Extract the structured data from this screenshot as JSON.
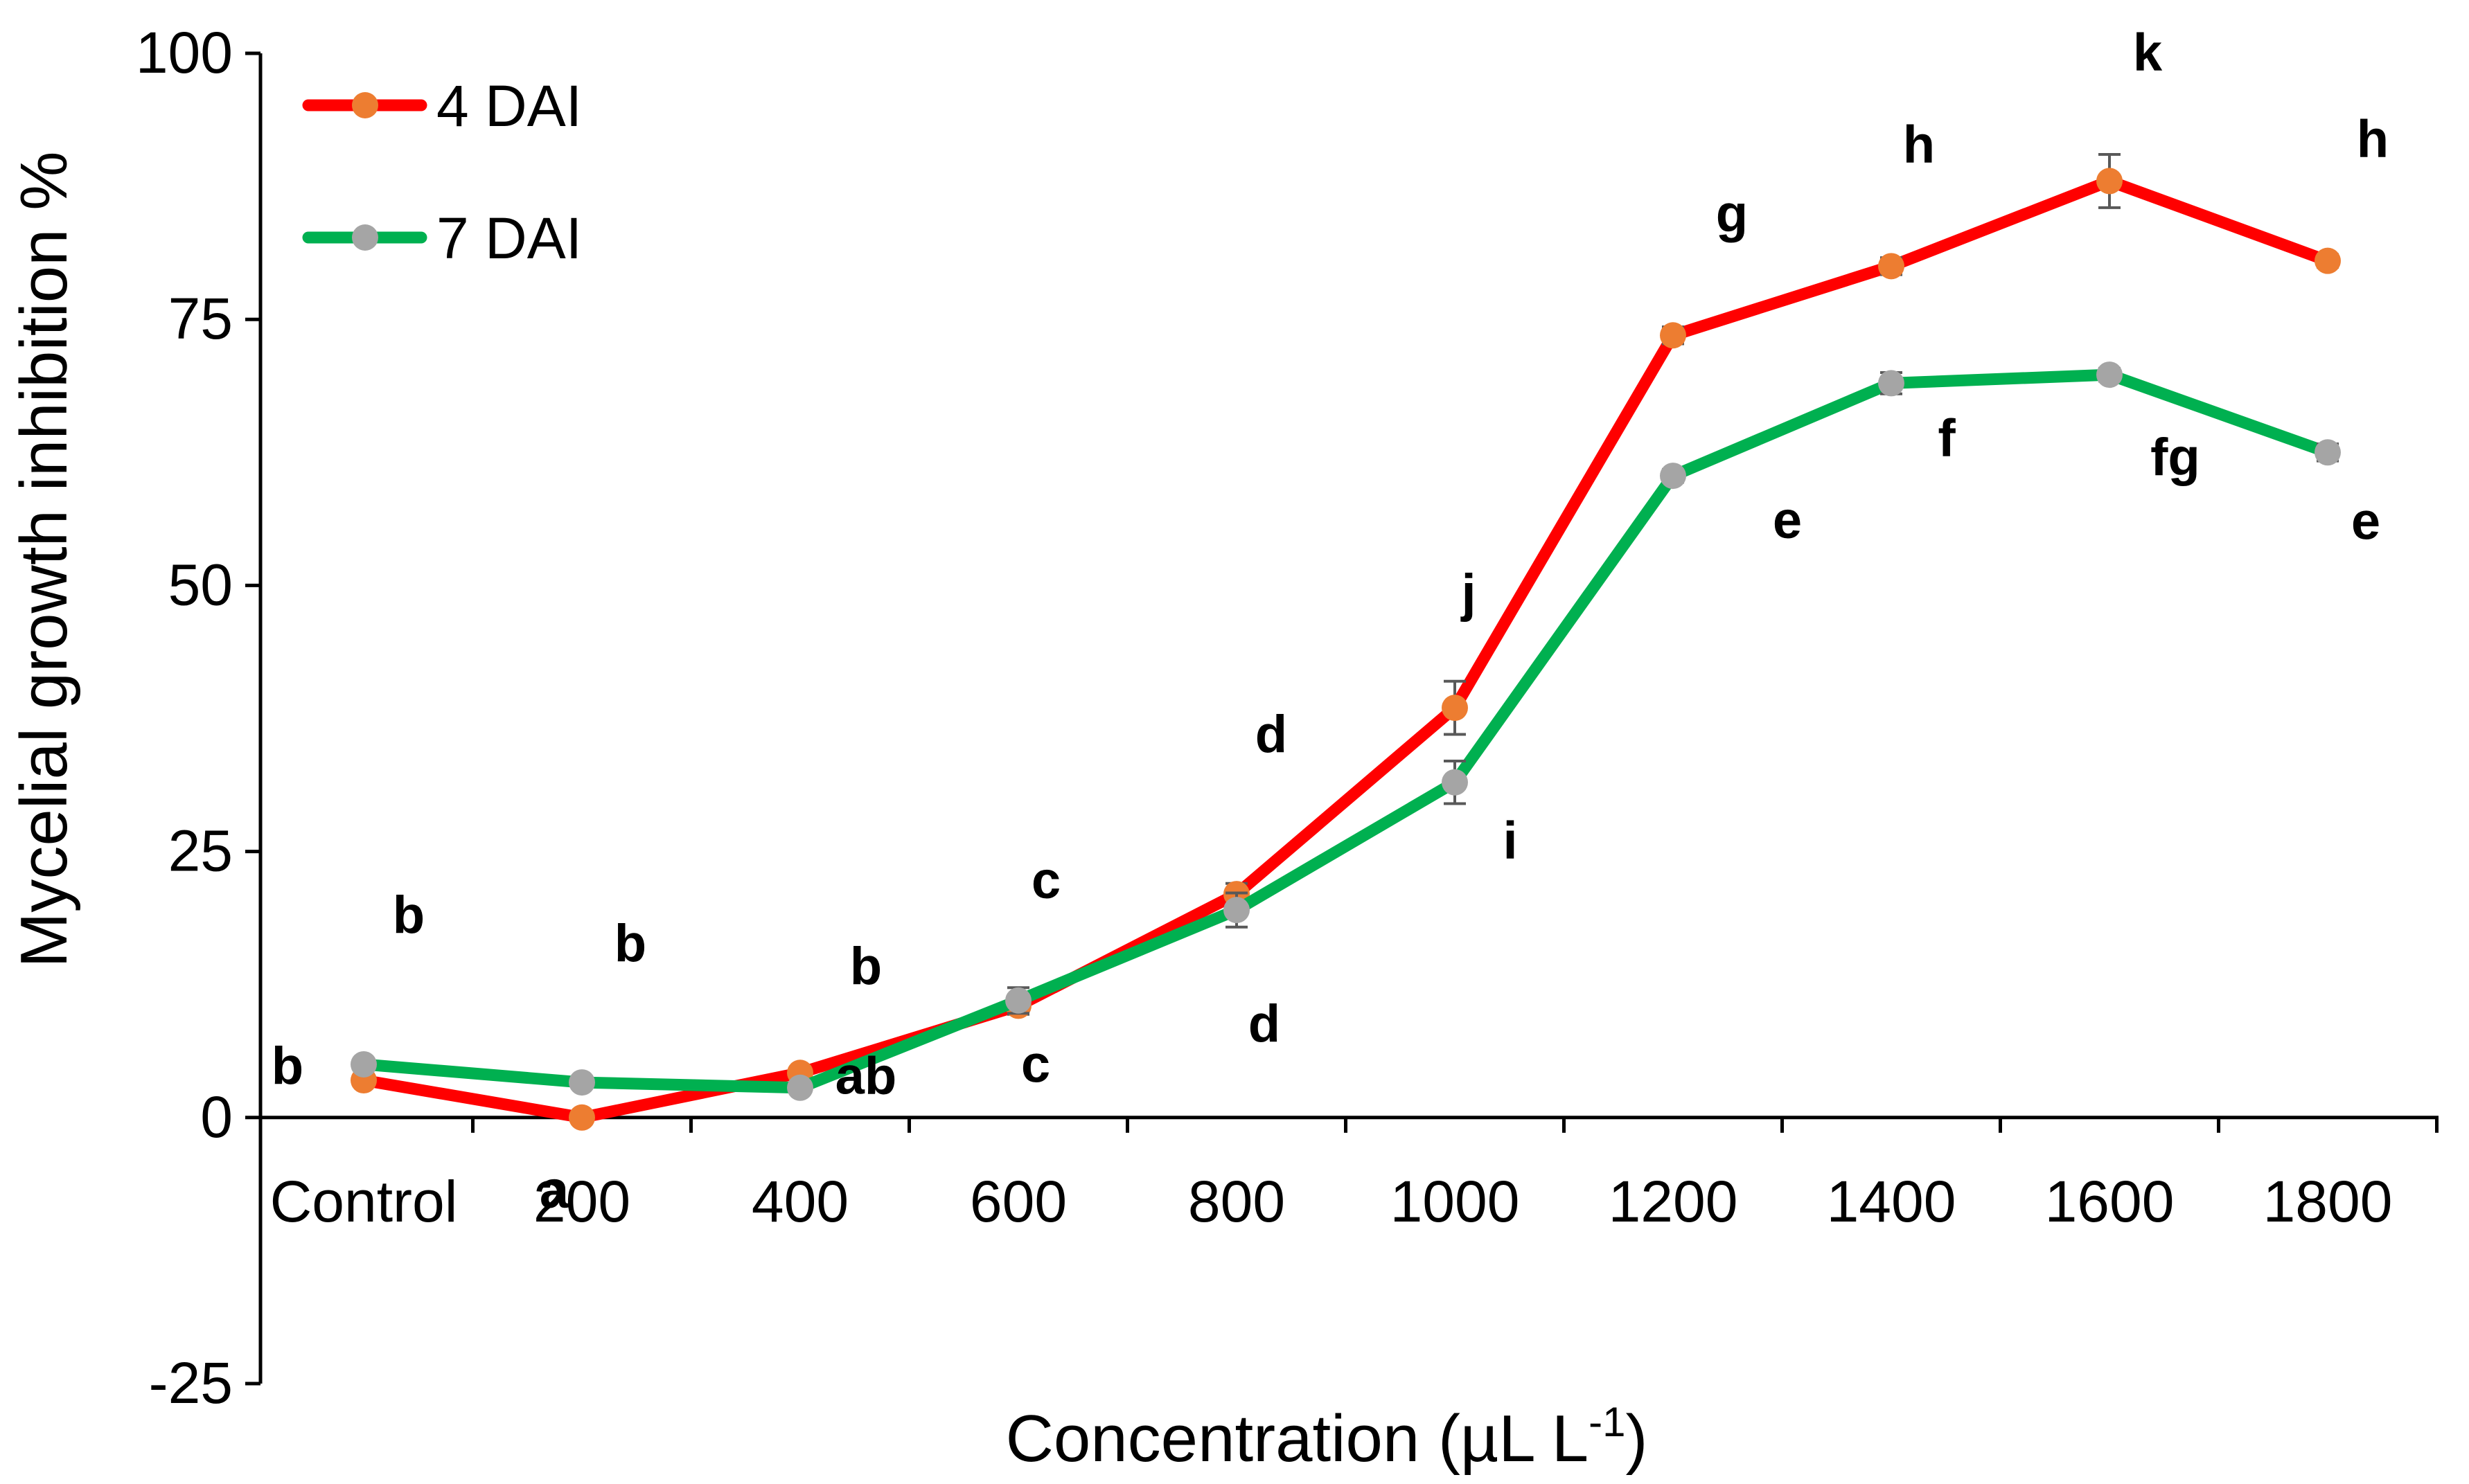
{
  "chart_data": {
    "type": "line",
    "title": "",
    "xlabel": "Concentration (µL L",
    "xlabel_superscript": "-1",
    "xlabel_close": ")",
    "ylabel": "Mycelial growth inhibition %",
    "categories": [
      "Control",
      "200",
      "400",
      "600",
      "800",
      "1000",
      "1200",
      "1400",
      "1600",
      "1800"
    ],
    "ylim": [
      -25,
      100
    ],
    "yticks": [
      -25,
      0,
      25,
      50,
      75,
      100
    ],
    "grid": false,
    "legend_position": "top-left",
    "series": [
      {
        "name": "4 DAI",
        "line_color": "#ff0000",
        "marker_color": "#ed7d31",
        "values": [
          3.5,
          0.0,
          4.2,
          10.5,
          21.0,
          38.5,
          73.5,
          80.0,
          88.0,
          80.5
        ],
        "errors": [
          0.5,
          0.3,
          0.5,
          0.8,
          1.0,
          2.5,
          0.8,
          0.8,
          2.5,
          0.6
        ],
        "labels": [
          "b",
          "a",
          "ab",
          "c",
          "d",
          "j",
          "g",
          "h",
          "k",
          "h"
        ]
      },
      {
        "name": "7 DAI",
        "line_color": "#00b050",
        "marker_color": "#a5a5a5",
        "values": [
          5.0,
          3.3,
          2.8,
          11.0,
          19.5,
          31.5,
          60.3,
          69.0,
          69.8,
          62.5
        ],
        "errors": [
          0.5,
          0.4,
          0.4,
          1.2,
          1.6,
          2.0,
          0.6,
          1.0,
          0.6,
          0.8
        ],
        "labels": [
          "b",
          "b",
          "b",
          "c",
          "d",
          "i",
          "e",
          "f",
          "fg",
          "e"
        ]
      }
    ]
  }
}
